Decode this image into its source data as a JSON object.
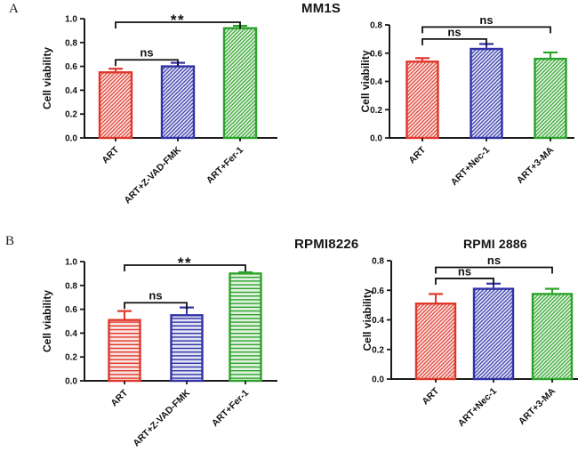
{
  "panels": {
    "a": "A",
    "b": "B"
  },
  "colors": {
    "red": "#e0372b",
    "red_tint": "#fae4e1",
    "blue": "#3032a6",
    "blue_tint": "#e2e4f4",
    "green": "#2ba32b",
    "green_tint": "#e3f2e0",
    "axis": "#1a1a1a",
    "text": "#111111"
  },
  "chart_data": [
    {
      "type": "bar",
      "title": "",
      "ylabel": "Cell viability",
      "ylim": [
        0,
        1.0
      ],
      "yticks": [
        "0.0",
        "0.2",
        "0.4",
        "0.6",
        "0.8",
        "1.0"
      ],
      "categories": [
        "ART",
        "ART+Z-VAD-FMK",
        "ART+Fer-1"
      ],
      "values": [
        0.55,
        0.6,
        0.92
      ],
      "errors": [
        0.03,
        0.03,
        0.02
      ],
      "bar_colors": [
        "red",
        "blue",
        "green"
      ],
      "hatch": "diagonal",
      "significance": [
        {
          "pair": [
            0,
            1
          ],
          "label": "ns",
          "y": 0.655
        },
        {
          "pair": [
            0,
            2
          ],
          "label": "**",
          "y": 0.97
        }
      ]
    },
    {
      "type": "bar",
      "title": "MM1S",
      "ylabel": "Cell viability",
      "ylim": [
        0,
        0.8
      ],
      "yticks": [
        "0.0",
        "0.2",
        "0.4",
        "0.6",
        "0.8"
      ],
      "categories": [
        "ART",
        "ART+Nec-1",
        "ART+3-MA"
      ],
      "values": [
        0.54,
        0.63,
        0.56
      ],
      "errors": [
        0.025,
        0.035,
        0.045
      ],
      "bar_colors": [
        "red",
        "blue",
        "green"
      ],
      "hatch": "diagonal",
      "significance": [
        {
          "pair": [
            0,
            1
          ],
          "label": "ns",
          "y": 0.7
        },
        {
          "pair": [
            0,
            2
          ],
          "label": "ns",
          "y": 0.785
        }
      ]
    },
    {
      "type": "bar",
      "title": "RPMI8226",
      "ylabel": "Cell viability",
      "ylim": [
        0,
        1.0
      ],
      "yticks": [
        "0.0",
        "0.2",
        "0.4",
        "0.6",
        "0.8",
        "1.0"
      ],
      "categories": [
        "ART",
        "ART+Z-VAD-FMK",
        "ART+Fer-1"
      ],
      "values": [
        0.51,
        0.55,
        0.9
      ],
      "errors": [
        0.075,
        0.065,
        0.01
      ],
      "bar_colors": [
        "red",
        "blue",
        "green"
      ],
      "hatch": "horizontal",
      "significance": [
        {
          "pair": [
            0,
            1
          ],
          "label": "ns",
          "y": 0.655
        },
        {
          "pair": [
            0,
            2
          ],
          "label": "**",
          "y": 0.97
        }
      ]
    },
    {
      "type": "bar",
      "title": "RPMI 2886",
      "ylabel": "Cell viability",
      "ylim": [
        0,
        0.8
      ],
      "yticks": [
        "0.0",
        "0.2",
        "0.4",
        "0.6",
        "0.8"
      ],
      "categories": [
        "ART",
        "ART+Nec-1",
        "ART+3-MA"
      ],
      "values": [
        0.51,
        0.61,
        0.575
      ],
      "errors": [
        0.065,
        0.035,
        0.035
      ],
      "bar_colors": [
        "red",
        "blue",
        "green"
      ],
      "hatch": "diagonal",
      "significance": [
        {
          "pair": [
            0,
            1
          ],
          "label": "ns",
          "y": 0.68
        },
        {
          "pair": [
            0,
            2
          ],
          "label": "ns",
          "y": 0.755
        }
      ]
    }
  ]
}
